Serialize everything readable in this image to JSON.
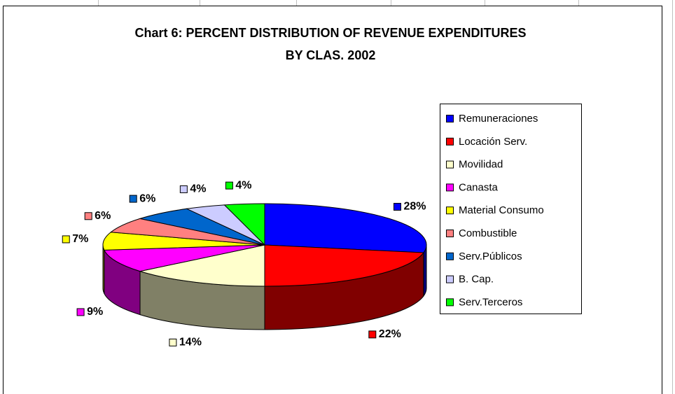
{
  "chart_data": {
    "type": "pie3d",
    "title": [
      "Chart 6:  PERCENT DISTRIBUTION OF REVENUE EXPENDITURES",
      "BY CLAS. 2002"
    ],
    "categories": [
      "Remuneraciones",
      "Locación Serv.",
      "Movilidad",
      "Canasta",
      "Material Consumo",
      "Combustible",
      "Serv.Públicos",
      "B. Cap.",
      "Serv.Terceros"
    ],
    "values": [
      28,
      22,
      14,
      9,
      7,
      6,
      6,
      4,
      4
    ],
    "value_labels": [
      "28%",
      "22%",
      "14%",
      "9%",
      "7%",
      "6%",
      "6%",
      "4%",
      "4%"
    ],
    "colors": [
      "#0000ff",
      "#ff0000",
      "#ffffcc",
      "#ff00ff",
      "#ffff00",
      "#ff8080",
      "#0066cc",
      "#ccccff",
      "#00ff00"
    ],
    "side_colors": [
      "#000080",
      "#800000",
      "#808066",
      "#800080",
      "#808000",
      "#804040",
      "#003366",
      "#666680",
      "#008000"
    ],
    "legend": "right"
  }
}
